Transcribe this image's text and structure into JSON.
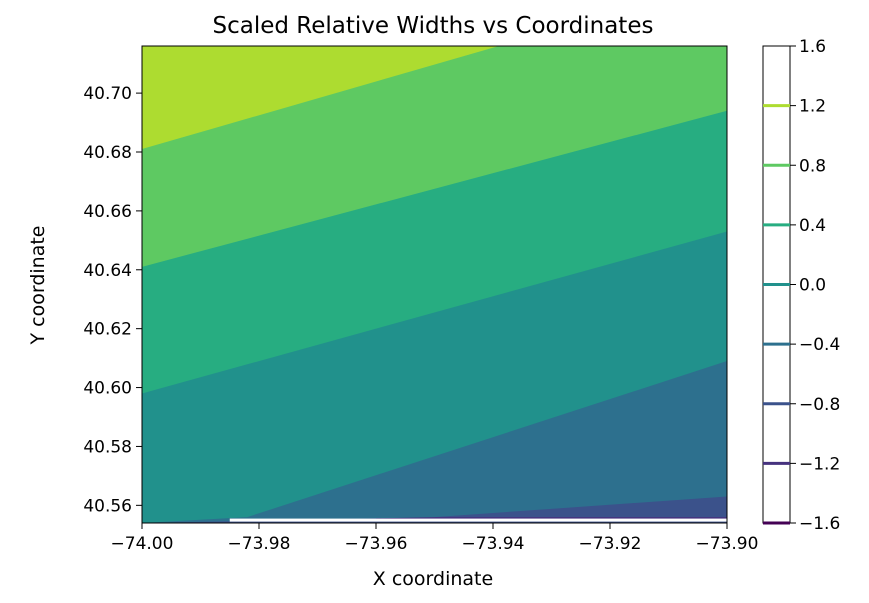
{
  "chart_data": {
    "type": "contour",
    "title": "Scaled Relative Widths vs Coordinates",
    "xlabel": "X coordinate",
    "ylabel": "Y coordinate",
    "xlim": [
      -74.0,
      -73.9
    ],
    "ylim": [
      40.554,
      40.716
    ],
    "xticks": [
      "−74.00",
      "−73.98",
      "−73.96",
      "−73.94",
      "−73.92",
      "−73.90"
    ],
    "xtick_values": [
      -74.0,
      -73.98,
      -73.96,
      -73.94,
      -73.92,
      -73.9
    ],
    "yticks": [
      "40.56",
      "40.58",
      "40.60",
      "40.62",
      "40.64",
      "40.66",
      "40.68",
      "40.70"
    ],
    "ytick_values": [
      40.56,
      40.58,
      40.6,
      40.62,
      40.64,
      40.66,
      40.68,
      40.7
    ],
    "colorbar": {
      "range": [
        -1.6,
        1.6
      ],
      "ticks": [
        "−1.6",
        "−1.2",
        "−0.8",
        "−0.4",
        "0.0",
        "0.4",
        "0.8",
        "1.2",
        "1.6"
      ],
      "tick_values": [
        -1.6,
        -1.2,
        -0.8,
        -0.4,
        0.0,
        0.4,
        0.8,
        1.2,
        1.6
      ]
    },
    "levels": [
      {
        "range": [
          -1.6,
          -1.2
        ],
        "color": "#46327e"
      },
      {
        "range": [
          -1.2,
          -0.8
        ],
        "color": "#3b528b"
      },
      {
        "range": [
          -0.8,
          -0.4
        ],
        "color": "#2d708e"
      },
      {
        "range": [
          -0.4,
          0.0
        ],
        "color": "#21918c"
      },
      {
        "range": [
          0.0,
          0.4
        ],
        "color": "#27ad81"
      },
      {
        "range": [
          0.4,
          0.8
        ],
        "color": "#5ec962"
      },
      {
        "range": [
          0.8,
          1.2
        ],
        "color": "#addc30"
      }
    ],
    "band_boundaries": [
      {
        "between": [
          0.8,
          1.2
        ],
        "left": [
          -74.0,
          40.681
        ],
        "right": [
          -73.939,
          40.716
        ]
      },
      {
        "between": [
          0.4,
          0.8
        ],
        "left": [
          -74.0,
          40.641
        ],
        "right": [
          -73.9,
          40.694
        ]
      },
      {
        "between": [
          0.0,
          0.4
        ],
        "left": [
          -74.0,
          40.598
        ],
        "right": [
          -73.9,
          40.653
        ]
      },
      {
        "between": [
          -0.4,
          0.0
        ],
        "left": [
          -73.982,
          40.556
        ],
        "right": [
          -73.9,
          40.609
        ]
      },
      {
        "between": [
          -0.8,
          -0.4
        ],
        "left": [
          -73.95,
          40.556
        ],
        "right": [
          -73.9,
          40.563
        ]
      }
    ],
    "grid": false,
    "legend": "colorbar-right"
  }
}
